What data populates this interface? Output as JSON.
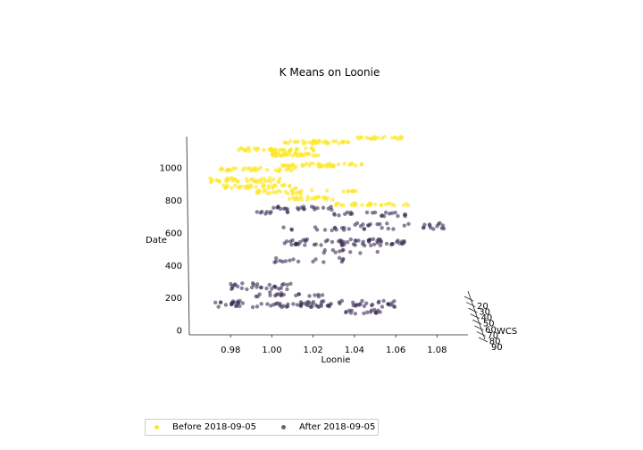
{
  "chart_data": {
    "type": "scatter",
    "title": "K Means on Loonie",
    "xlabel": "Loonie",
    "ylabel": "Date",
    "zlabel": "WCS",
    "x_ticks": [
      "0.98",
      "1.00",
      "1.02",
      "1.04",
      "1.06",
      "1.08"
    ],
    "y_ticks": [
      "0",
      "200",
      "400",
      "600",
      "800",
      "1000"
    ],
    "z_ticks": [
      "20",
      "30",
      "40",
      "50",
      "60",
      "70",
      "80",
      "90"
    ],
    "xlim": [
      0.96,
      1.095
    ],
    "ylim": [
      -30,
      1190
    ],
    "legend_position": "bottom-left",
    "series": [
      {
        "name": "Before 2018-09-05",
        "color": "#fde725",
        "clusters": [
          {
            "x": [
              0.982,
              1.022
            ],
            "y": [
              1100,
              1120
            ],
            "count": 40
          },
          {
            "x": [
              1.0,
              1.025
            ],
            "y": [
              1070,
              1090
            ],
            "count": 38
          },
          {
            "x": [
              1.005,
              1.038
            ],
            "y": [
              1145,
              1165
            ],
            "count": 36
          },
          {
            "x": [
              1.04,
              1.065
            ],
            "y": [
              1175,
              1190
            ],
            "count": 22
          },
          {
            "x": [
              1.005,
              1.045
            ],
            "y": [
              1005,
              1025
            ],
            "count": 45
          },
          {
            "x": [
              0.975,
              1.012
            ],
            "y": [
              975,
              1000
            ],
            "count": 36
          },
          {
            "x": [
              0.97,
              1.005
            ],
            "y": [
              910,
              935
            ],
            "count": 40
          },
          {
            "x": [
              0.975,
              1.012
            ],
            "y": [
              870,
              895
            ],
            "count": 34
          },
          {
            "x": [
              0.99,
              1.02
            ],
            "y": [
              840,
              860
            ],
            "count": 26
          },
          {
            "x": [
              1.008,
              1.03
            ],
            "y": [
              800,
              820
            ],
            "count": 22
          },
          {
            "x": [
              1.025,
              1.042
            ],
            "y": [
              850,
              860
            ],
            "count": 9
          },
          {
            "x": [
              1.03,
              1.067
            ],
            "y": [
              765,
              780
            ],
            "count": 30
          }
        ]
      },
      {
        "name": "After 2018-09-05",
        "color": "#3b2d55",
        "clusters": [
          {
            "x": [
              1.0,
              1.03
            ],
            "y": [
              740,
              760
            ],
            "count": 22
          },
          {
            "x": [
              0.99,
              1.01
            ],
            "y": [
              715,
              730
            ],
            "count": 9
          },
          {
            "x": [
              1.03,
              1.065
            ],
            "y": [
              700,
              725
            ],
            "count": 22
          },
          {
            "x": [
              1.04,
              1.085
            ],
            "y": [
              620,
              660
            ],
            "count": 30
          },
          {
            "x": [
              1.005,
              1.038
            ],
            "y": [
              610,
              635
            ],
            "count": 14
          },
          {
            "x": [
              1.005,
              1.065
            ],
            "y": [
              520,
              560
            ],
            "count": 70
          },
          {
            "x": [
              1.025,
              1.055
            ],
            "y": [
              470,
              495
            ],
            "count": 10
          },
          {
            "x": [
              1.0,
              1.035
            ],
            "y": [
              415,
              445
            ],
            "count": 16
          },
          {
            "x": [
              0.98,
              1.01
            ],
            "y": [
              250,
              290
            ],
            "count": 30
          },
          {
            "x": [
              0.99,
              1.025
            ],
            "y": [
              205,
              235
            ],
            "count": 20
          },
          {
            "x": [
              0.97,
              1.06
            ],
            "y": [
              140,
              180
            ],
            "count": 90
          },
          {
            "x": [
              1.035,
              1.055
            ],
            "y": [
              100,
              125
            ],
            "count": 16
          }
        ]
      }
    ]
  }
}
